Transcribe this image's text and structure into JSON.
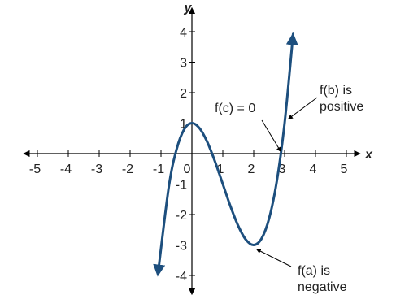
{
  "chart_data": {
    "type": "line",
    "x_label": "x",
    "y_label": "y",
    "x": [
      -1.1,
      -0.75,
      -0.5,
      -0.25,
      0,
      0.25,
      0.5,
      0.75,
      1,
      1.25,
      1.5,
      1.75,
      2,
      2.25,
      2.5,
      2.75,
      3,
      3.25,
      3.27
    ],
    "series": [
      {
        "color": "#1d4f7e",
        "values": [
          -3.961,
          -1.109,
          0.125,
          0.797,
          1,
          0.828,
          0.375,
          -0.266,
          -1,
          -1.734,
          -2.375,
          -2.828,
          -3,
          -2.797,
          -2.125,
          -0.891,
          1,
          3.641,
          3.886
        ]
      }
    ],
    "xlim": [
      -5.5,
      5.5
    ],
    "ylim": [
      -4.6,
      4.6
    ],
    "xticks": [
      -5,
      -4,
      -3,
      -2,
      -1,
      0,
      1,
      2,
      3,
      4,
      5
    ],
    "yticks": [
      -4,
      -3,
      -2,
      -1,
      1,
      2,
      3,
      4
    ],
    "annotations": [
      "f(c) = 0",
      "f(b) is",
      "positive",
      "f(a) is",
      "negative"
    ]
  }
}
